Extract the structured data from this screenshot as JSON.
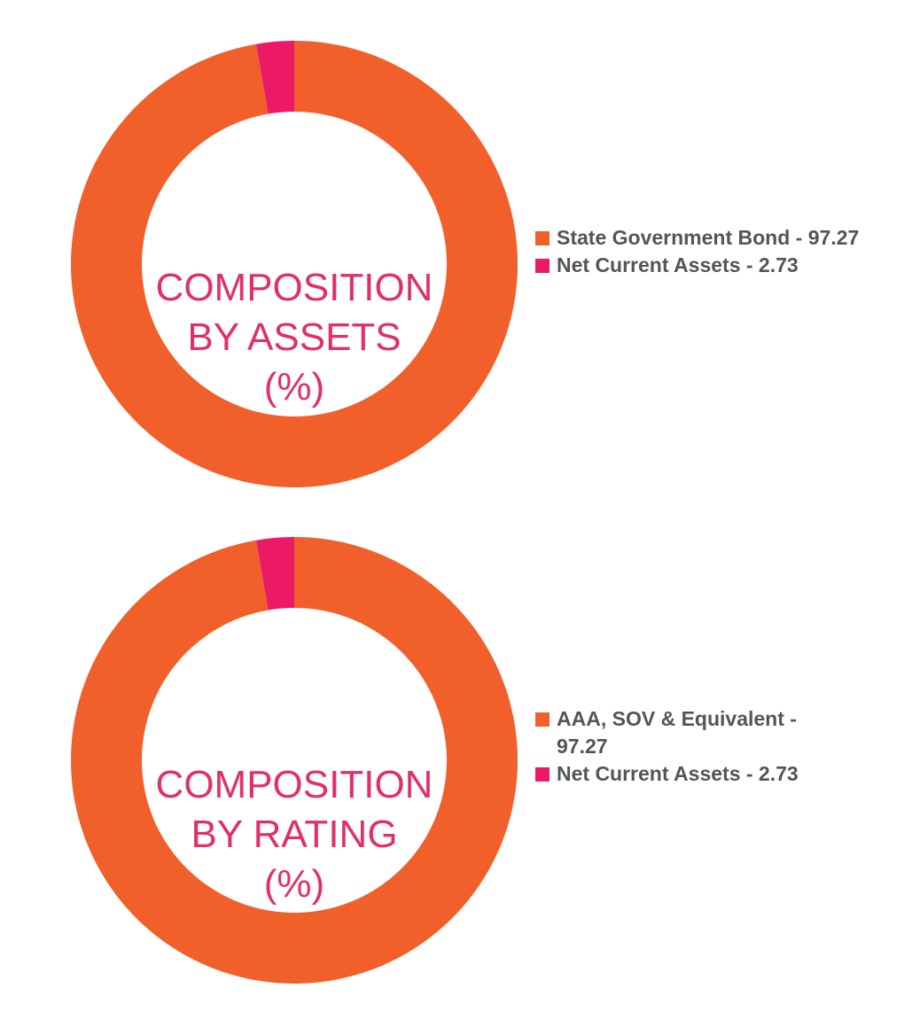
{
  "chart_data": [
    {
      "type": "pie",
      "donut": true,
      "center_label": [
        "COMPOSITION",
        "BY ASSETS",
        "(%)"
      ],
      "slices": [
        {
          "label": "State Government Bond - 97.27",
          "value": 97.27,
          "color": "#f15f2a"
        },
        {
          "label": "Net Current Assets - 2.73",
          "value": 2.73,
          "color": "#ec1966"
        }
      ],
      "legend_position": "right"
    },
    {
      "type": "pie",
      "donut": true,
      "center_label": [
        "COMPOSITION",
        "BY RATING",
        "(%)"
      ],
      "slices": [
        {
          "label": "AAA, SOV & Equivalent - 97.27",
          "value": 97.27,
          "color": "#f15f2a"
        },
        {
          "label": "Net Current Assets - 2.73",
          "value": 2.73,
          "color": "#ec1966"
        }
      ],
      "legend_position": "right"
    }
  ]
}
